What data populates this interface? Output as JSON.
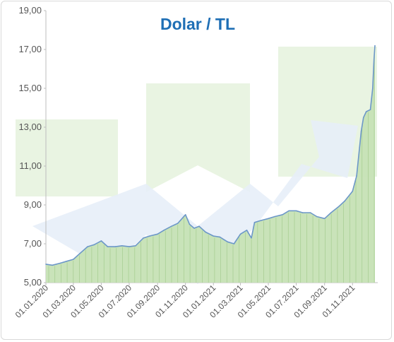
{
  "chart_data": {
    "type": "area",
    "title": "Dolar / TL",
    "xlabel": "",
    "ylabel": "",
    "ylim": [
      5.0,
      19.0
    ],
    "yticks": [
      "19,00",
      "17,00",
      "15,00",
      "13,00",
      "11,00",
      "9,00",
      "7,00",
      "5,00"
    ],
    "xticks": [
      "01.01.2020",
      "01.03.2020",
      "01.05.2020",
      "01.07.2020",
      "01.09.2020",
      "01.11.2020",
      "01.01.2021",
      "01.03.2021",
      "01.05.2021",
      "01.07.2021",
      "01.09.2021",
      "01.11.2021"
    ],
    "grid": false,
    "legend": "none",
    "colors": {
      "title": "#1f6fb5",
      "line": "#6c97c8",
      "fill": "#c6e2b5",
      "bar_lines": "#a9cf94",
      "axis": "#bdbdbd",
      "watermark_green": "#e9f4e2",
      "watermark_blue": "#e7eef8"
    },
    "series": [
      {
        "x": [
          "01.01.2020",
          "15.01.2020",
          "01.02.2020",
          "15.02.2020",
          "01.03.2020",
          "15.03.2020",
          "01.04.2020",
          "15.04.2020",
          "01.05.2020",
          "15.05.2020",
          "01.06.2020",
          "15.06.2020",
          "01.07.2020",
          "15.07.2020",
          "01.08.2020",
          "15.08.2020",
          "01.09.2020",
          "15.09.2020",
          "01.10.2020",
          "15.10.2020",
          "01.11.2020",
          "10.11.2020",
          "20.11.2020",
          "01.12.2020",
          "15.12.2020",
          "01.01.2021",
          "15.01.2021",
          "01.02.2021",
          "15.02.2021",
          "01.03.2021",
          "15.03.2021",
          "25.03.2021",
          "01.04.2021",
          "15.04.2021",
          "01.05.2021",
          "15.05.2021",
          "01.06.2021",
          "15.06.2021",
          "01.07.2021",
          "15.07.2021",
          "01.08.2021",
          "15.08.2021",
          "01.09.2021",
          "15.09.2021",
          "01.10.2021",
          "15.10.2021",
          "01.11.2021",
          "10.11.2021",
          "20.11.2021",
          "25.11.2021",
          "01.12.2021",
          "10.12.2021",
          "15.12.2021",
          "18.12.2021",
          "20.12.2021"
        ],
        "values": [
          5.95,
          5.9,
          6.0,
          6.1,
          6.2,
          6.5,
          6.85,
          6.95,
          7.15,
          6.85,
          6.85,
          6.9,
          6.85,
          6.9,
          7.3,
          7.4,
          7.5,
          7.7,
          7.9,
          8.05,
          8.5,
          8.0,
          7.8,
          7.9,
          7.6,
          7.4,
          7.35,
          7.1,
          7.0,
          7.5,
          7.7,
          7.3,
          8.1,
          8.2,
          8.3,
          8.4,
          8.5,
          8.7,
          8.7,
          8.6,
          8.6,
          8.4,
          8.3,
          8.6,
          8.9,
          9.2,
          9.7,
          10.5,
          12.8,
          13.5,
          13.8,
          13.9,
          15.0,
          16.5,
          17.2
        ]
      }
    ]
  }
}
